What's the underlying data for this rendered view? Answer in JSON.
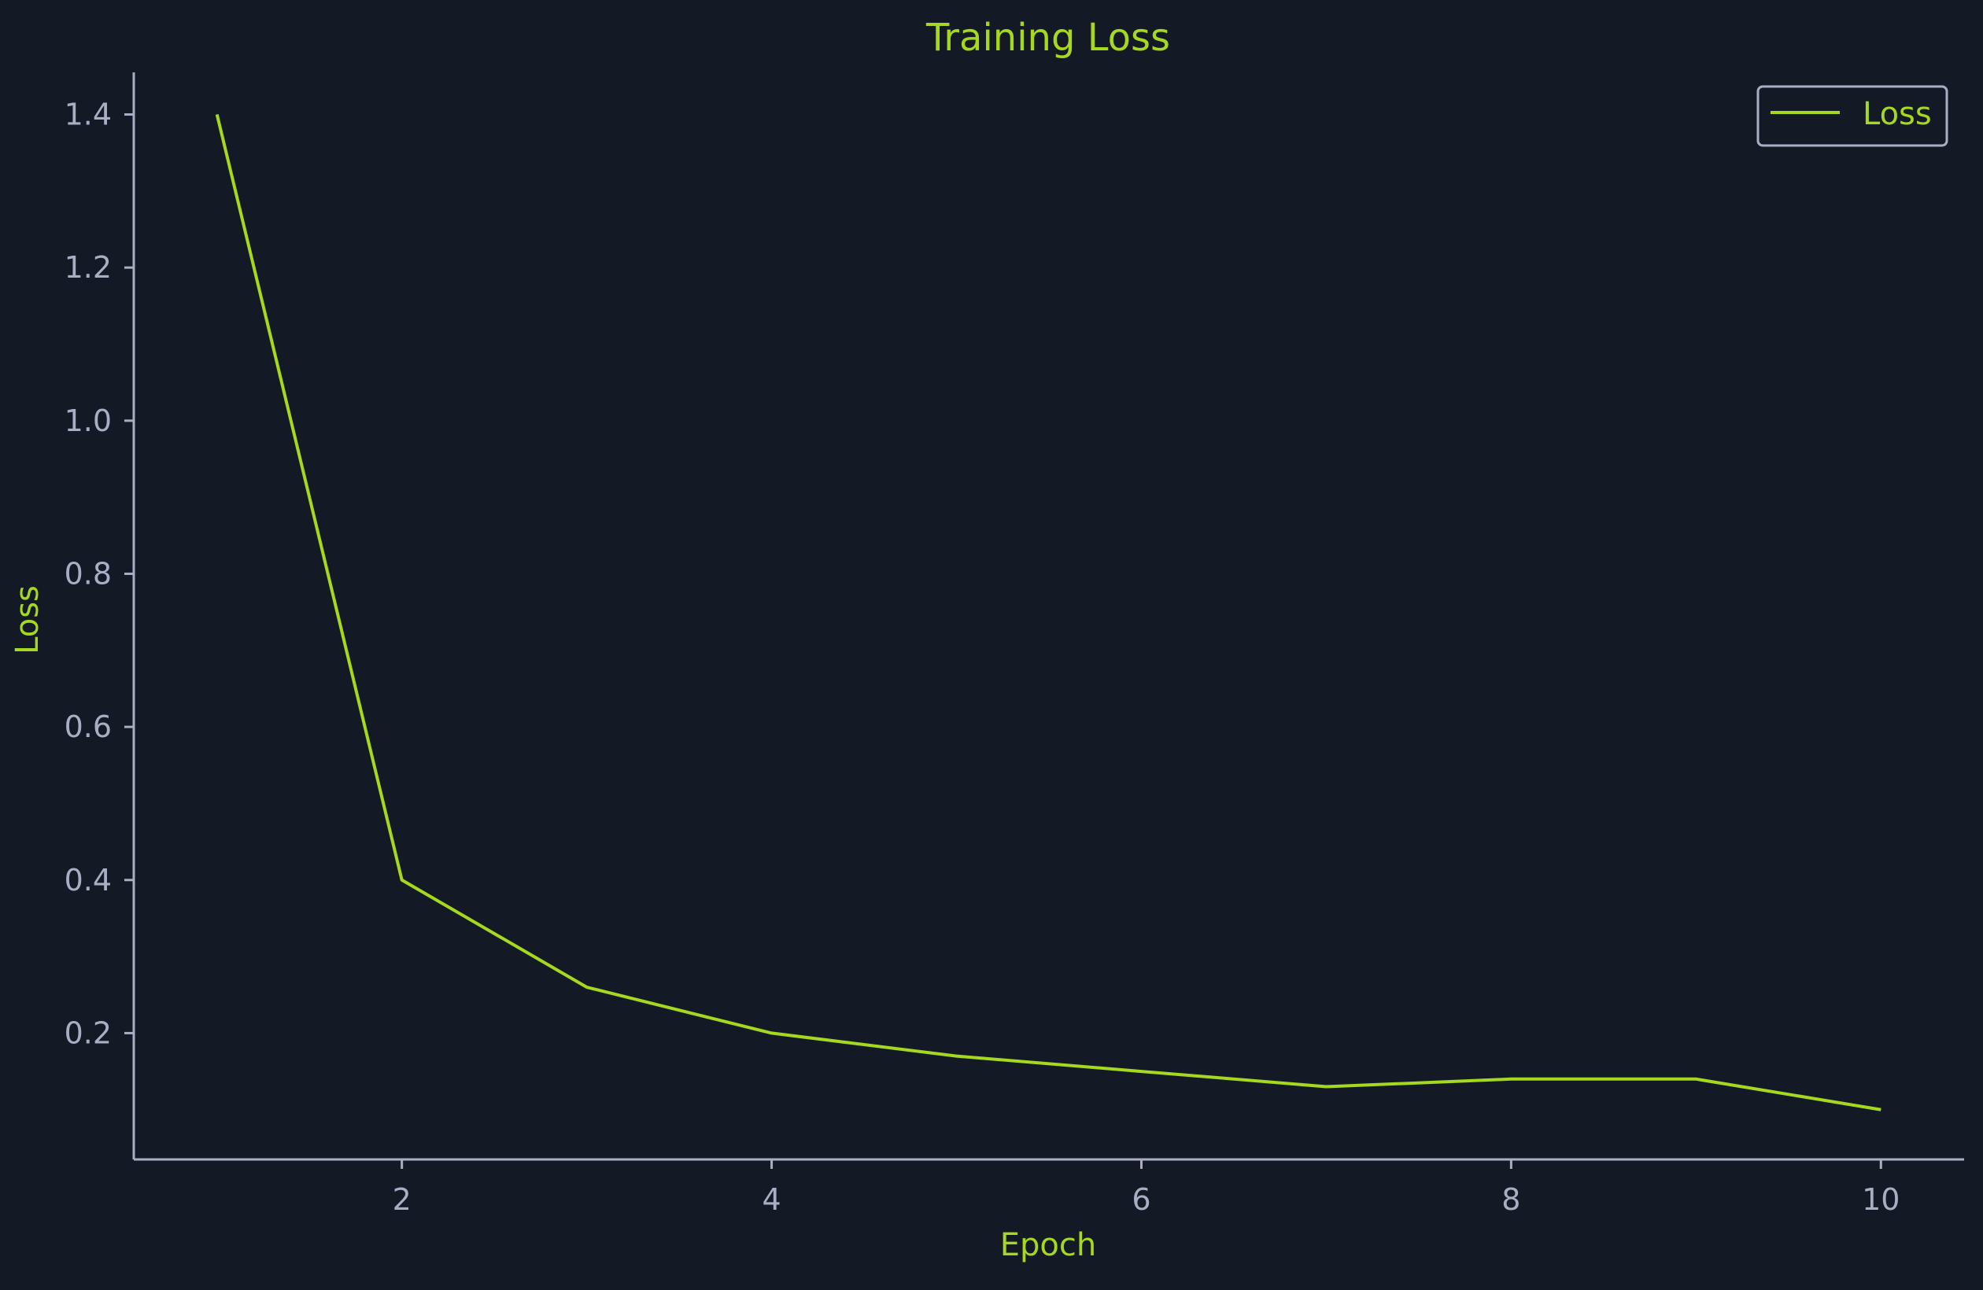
{
  "chart_data": {
    "type": "line",
    "title": "Training Loss",
    "xlabel": "Epoch",
    "ylabel": "Loss",
    "x": [
      1,
      2,
      3,
      4,
      5,
      6,
      7,
      8,
      9,
      10
    ],
    "series": [
      {
        "name": "Loss",
        "values": [
          1.4,
          0.4,
          0.26,
          0.2,
          0.17,
          0.15,
          0.13,
          0.14,
          0.14,
          0.1
        ],
        "color": "#a6d81f"
      }
    ],
    "xlim": [
      0.55,
      10.45
    ],
    "ylim": [
      0.035,
      1.455
    ],
    "xticks": [
      2,
      4,
      6,
      8,
      10
    ],
    "yticks": [
      0.2,
      0.4,
      0.6,
      0.8,
      1.0,
      1.2,
      1.4
    ],
    "x_tick_labels": [
      "2",
      "4",
      "6",
      "8",
      "10"
    ],
    "y_tick_labels": [
      "0.2",
      "0.4",
      "0.6",
      "0.8",
      "1.0",
      "1.2",
      "1.4"
    ],
    "grid": false,
    "legend_position": "top-right"
  },
  "colors": {
    "background": "#141a25",
    "accent": "#a6d81f",
    "axis": "#a9aec4",
    "tick_text": "#a9aec4"
  }
}
